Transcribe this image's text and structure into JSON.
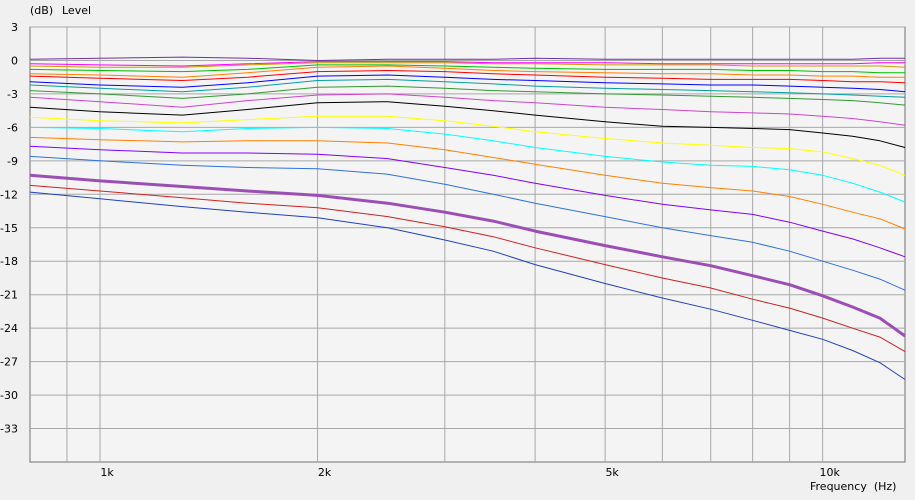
{
  "chart_data": {
    "type": "line",
    "ylabel_unit": "(dB)",
    "ylabel": "Level",
    "xlabel": "Frequency  (Hz)",
    "x_scale": "log",
    "xlim": [
      800,
      13000
    ],
    "ylim": [
      -36,
      3
    ],
    "y_ticks": [
      3,
      0,
      -3,
      -6,
      -9,
      -12,
      -15,
      -18,
      -21,
      -24,
      -27,
      -30,
      -33
    ],
    "x_tick_labels": [
      {
        "value": 1000,
        "label": "1k"
      },
      {
        "value": 2000,
        "label": "2k"
      },
      {
        "value": 5000,
        "label": "5k"
      },
      {
        "value": 10000,
        "label": "10k"
      }
    ],
    "x_grid": [
      900,
      1000,
      2000,
      3000,
      4000,
      5000,
      6000,
      7000,
      8000,
      9000,
      10000
    ],
    "grid": true,
    "x": [
      800,
      1000,
      1300,
      1600,
      2000,
      2500,
      3000,
      3500,
      4000,
      5000,
      6000,
      7000,
      8000,
      9000,
      10000,
      11000,
      12000,
      13000
    ],
    "series": [
      {
        "color": "#7030a0",
        "width": 1,
        "values": [
          0.1,
          0.2,
          0.3,
          0.2,
          0.0,
          0.1,
          0.1,
          0.1,
          0.2,
          0.1,
          0.1,
          0.1,
          0.1,
          0.1,
          0.1,
          0.1,
          0.2,
          0.2
        ]
      },
      {
        "color": "#ff00ff",
        "width": 1,
        "values": [
          -0.3,
          -0.4,
          -0.5,
          -0.3,
          -0.1,
          -0.1,
          -0.1,
          -0.2,
          -0.2,
          -0.2,
          -0.3,
          -0.3,
          -0.3,
          -0.3,
          -0.3,
          -0.3,
          -0.2,
          -0.2
        ]
      },
      {
        "color": "#c8a000",
        "width": 1,
        "values": [
          -0.5,
          -0.6,
          -0.6,
          -0.4,
          -0.2,
          -0.2,
          -0.2,
          -0.3,
          -0.3,
          -0.4,
          -0.4,
          -0.4,
          -0.5,
          -0.5,
          -0.5,
          -0.5,
          -0.5,
          -0.6
        ]
      },
      {
        "color": "#00c000",
        "width": 1,
        "values": [
          -0.8,
          -0.9,
          -1.0,
          -0.8,
          -0.4,
          -0.4,
          -0.5,
          -0.6,
          -0.7,
          -0.8,
          -0.8,
          -0.8,
          -0.9,
          -0.9,
          -1.0,
          -1.0,
          -1.1,
          -1.1
        ]
      },
      {
        "color": "#ff8000",
        "width": 1,
        "values": [
          -1.2,
          -1.3,
          -1.5,
          -1.1,
          -0.6,
          -0.5,
          -0.7,
          -0.9,
          -1.0,
          -1.1,
          -1.2,
          -1.2,
          -1.3,
          -1.3,
          -1.4,
          -1.4,
          -1.5,
          -1.5
        ]
      },
      {
        "color": "#ff0000",
        "width": 1,
        "values": [
          -1.4,
          -1.6,
          -1.8,
          -1.5,
          -1.0,
          -0.9,
          -1.0,
          -1.2,
          -1.3,
          -1.5,
          -1.6,
          -1.7,
          -1.7,
          -1.7,
          -1.8,
          -1.9,
          -1.9,
          -2.0
        ]
      },
      {
        "color": "#0000ff",
        "width": 1,
        "values": [
          -1.9,
          -2.2,
          -2.4,
          -2.0,
          -1.4,
          -1.3,
          -1.5,
          -1.7,
          -1.8,
          -2.0,
          -2.1,
          -2.2,
          -2.2,
          -2.3,
          -2.4,
          -2.5,
          -2.6,
          -2.8
        ]
      },
      {
        "color": "#00a0a0",
        "width": 1,
        "values": [
          -2.2,
          -2.5,
          -2.8,
          -2.4,
          -1.8,
          -1.7,
          -1.9,
          -2.1,
          -2.3,
          -2.5,
          -2.6,
          -2.7,
          -2.8,
          -2.9,
          -3.0,
          -3.1,
          -3.2,
          -3.3
        ]
      },
      {
        "color": "#339933",
        "width": 1,
        "values": [
          -2.7,
          -3.0,
          -3.4,
          -3.0,
          -2.4,
          -2.3,
          -2.5,
          -2.7,
          -2.8,
          -3.0,
          -3.1,
          -3.2,
          -3.3,
          -3.4,
          -3.5,
          -3.6,
          -3.8,
          -4.0
        ]
      },
      {
        "color": "#cc44cc",
        "width": 1,
        "values": [
          -3.3,
          -3.7,
          -4.2,
          -3.6,
          -3.1,
          -3.0,
          -3.3,
          -3.6,
          -3.8,
          -4.2,
          -4.4,
          -4.6,
          -4.7,
          -4.8,
          -5.0,
          -5.2,
          -5.5,
          -5.8
        ]
      },
      {
        "color": "#000000",
        "width": 1,
        "values": [
          -4.2,
          -4.6,
          -4.9,
          -4.4,
          -3.8,
          -3.7,
          -4.1,
          -4.5,
          -4.9,
          -5.5,
          -5.9,
          -6.0,
          -6.1,
          -6.2,
          -6.5,
          -6.8,
          -7.2,
          -7.8
        ]
      },
      {
        "color": "#ffff00",
        "width": 1,
        "values": [
          -5.1,
          -5.4,
          -5.6,
          -5.3,
          -5.0,
          -5.0,
          -5.4,
          -5.9,
          -6.4,
          -7.0,
          -7.4,
          -7.6,
          -7.8,
          -7.9,
          -8.2,
          -8.8,
          -9.4,
          -10.3
        ]
      },
      {
        "color": "#00ffff",
        "width": 1,
        "values": [
          -6.0,
          -6.1,
          -6.4,
          -6.1,
          -6.0,
          -6.1,
          -6.6,
          -7.2,
          -7.8,
          -8.6,
          -9.1,
          -9.4,
          -9.5,
          -9.8,
          -10.3,
          -11.0,
          -11.8,
          -12.7
        ]
      },
      {
        "color": "#ff8000",
        "width": 1,
        "values": [
          -6.9,
          -7.1,
          -7.3,
          -7.2,
          -7.2,
          -7.4,
          -8.0,
          -8.7,
          -9.3,
          -10.3,
          -11.0,
          -11.4,
          -11.7,
          -12.2,
          -12.9,
          -13.6,
          -14.2,
          -15.1
        ]
      },
      {
        "color": "#8000ff",
        "width": 1,
        "values": [
          -7.7,
          -8.0,
          -8.3,
          -8.3,
          -8.4,
          -8.8,
          -9.6,
          -10.3,
          -11.0,
          -12.1,
          -12.9,
          -13.4,
          -13.8,
          -14.5,
          -15.3,
          -16.0,
          -16.8,
          -17.6
        ]
      },
      {
        "color": "#3070e0",
        "width": 1,
        "values": [
          -8.6,
          -9.0,
          -9.4,
          -9.6,
          -9.7,
          -10.2,
          -11.1,
          -12.0,
          -12.8,
          -14.0,
          -15.0,
          -15.7,
          -16.3,
          -17.1,
          -18.0,
          -18.8,
          -19.6,
          -20.6
        ]
      },
      {
        "color": "#9b4fb5",
        "width": 3,
        "values": [
          -10.3,
          -10.8,
          -11.3,
          -11.7,
          -12.1,
          -12.8,
          -13.6,
          -14.4,
          -15.3,
          -16.6,
          -17.6,
          -18.4,
          -19.3,
          -20.1,
          -21.1,
          -22.1,
          -23.1,
          -24.7
        ]
      },
      {
        "color": "#d02020",
        "width": 1,
        "values": [
          -11.2,
          -11.7,
          -12.3,
          -12.8,
          -13.2,
          -14.0,
          -14.9,
          -15.8,
          -16.8,
          -18.3,
          -19.5,
          -20.4,
          -21.4,
          -22.2,
          -23.1,
          -24.0,
          -24.8,
          -26.1
        ]
      },
      {
        "color": "#2040c0",
        "width": 1,
        "values": [
          -11.8,
          -12.4,
          -13.1,
          -13.6,
          -14.1,
          -15.0,
          -16.1,
          -17.1,
          -18.3,
          -20.0,
          -21.3,
          -22.3,
          -23.3,
          -24.2,
          -25.0,
          -26.0,
          -27.1,
          -28.6
        ]
      }
    ]
  }
}
